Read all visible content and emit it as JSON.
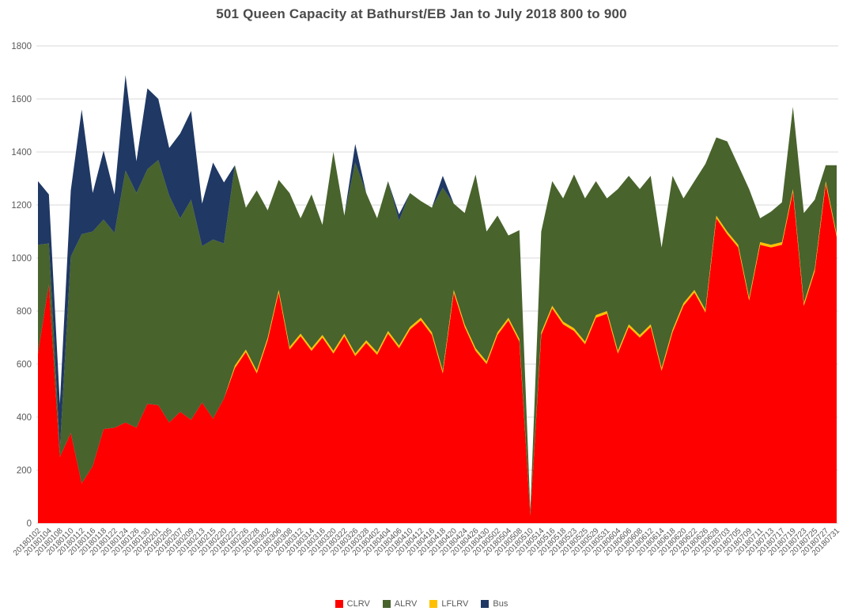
{
  "title": "501 Queen Capacity at Bathurst/EB Jan to July 2018 800 to 900",
  "colors": {
    "background": "#FFFFFF",
    "grid": "#D9D9D9",
    "axis_text": "#595959",
    "title_text": "#4a4a4a"
  },
  "legend": {
    "items": [
      "CLRV",
      "ALRV",
      "LFLRV",
      "Bus"
    ]
  },
  "chart_data": {
    "type": "area",
    "stacked": true,
    "title": "501 Queen Capacity at Bathurst/EB Jan to July 2018 800 to 900",
    "xlabel": "",
    "ylabel": "",
    "ylim": [
      0,
      1800
    ],
    "yticks": [
      0,
      200,
      400,
      600,
      800,
      1000,
      1200,
      1400,
      1600,
      1800
    ],
    "grid": true,
    "legend_position": "bottom",
    "x_labels_rotation": 45,
    "categories": [
      "20180102",
      "20180104",
      "20180108",
      "20180110",
      "20180112",
      "20180116",
      "20180118",
      "20180122",
      "20180124",
      "20180126",
      "20180130",
      "20180201",
      "20180205",
      "20180207",
      "20180209",
      "20180213",
      "20180215",
      "20180220",
      "20180222",
      "20180226",
      "20180228",
      "20180302",
      "20180306",
      "20180308",
      "20180312",
      "20180314",
      "20180316",
      "20180320",
      "20180322",
      "20180326",
      "20180328",
      "20180402",
      "20180404",
      "20180406",
      "20180410",
      "20180412",
      "20180416",
      "20180418",
      "20180420",
      "20180424",
      "20180426",
      "20180430",
      "20180502",
      "20180504",
      "20180508",
      "20180510",
      "20180514",
      "20180516",
      "20180518",
      "20180523",
      "20180525",
      "20180529",
      "20180531",
      "20180604",
      "20180606",
      "20180608",
      "20180612",
      "20180614",
      "20180618",
      "20180620",
      "20180622",
      "20180626",
      "20180628",
      "20180703",
      "20180705",
      "20180709",
      "20180711",
      "20180713",
      "20180717",
      "20180719",
      "20180723",
      "20180725",
      "20180727",
      "20180731"
    ],
    "series": [
      {
        "name": "CLRV",
        "color": "#FF0000",
        "values": [
          640,
          900,
          250,
          340,
          150,
          215,
          355,
          360,
          380,
          360,
          450,
          445,
          380,
          420,
          390,
          455,
          395,
          470,
          585,
          645,
          565,
          690,
          870,
          655,
          705,
          650,
          700,
          640,
          705,
          630,
          680,
          635,
          715,
          660,
          730,
          765,
          710,
          565,
          870,
          740,
          650,
          600,
          710,
          765,
          685,
          30,
          710,
          810,
          750,
          725,
          675,
          775,
          790,
          640,
          740,
          700,
          740,
          575,
          720,
          820,
          870,
          795,
          1150,
          1090,
          1040,
          840,
          1050,
          1040,
          1050,
          1250,
          820,
          950,
          1280,
          1080
        ]
      },
      {
        "name": "ALRV",
        "color": "#48632C",
        "values": [
          410,
          155,
          30,
          665,
          940,
          885,
          790,
          735,
          950,
          885,
          885,
          925,
          855,
          730,
          830,
          590,
          675,
          585,
          755,
          535,
          680,
          480,
          415,
          580,
          435,
          580,
          415,
          750,
          445,
          720,
          555,
          505,
          565,
          470,
          505,
          440,
          470,
          690,
          325,
          420,
          655,
          490,
          440,
          310,
          410,
          20,
          380,
          470,
          465,
          580,
          540,
          505,
          425,
          610,
          560,
          550,
          560,
          455,
          580,
          395,
          410,
          550,
          295,
          340,
          300,
          410,
          90,
          125,
          150,
          310,
          340,
          260,
          60,
          260
        ]
      },
      {
        "name": "LFLRV",
        "color": "#FFC000",
        "values": [
          0,
          0,
          0,
          0,
          0,
          0,
          0,
          0,
          0,
          0,
          0,
          0,
          0,
          0,
          0,
          0,
          0,
          0,
          10,
          10,
          10,
          10,
          10,
          10,
          10,
          10,
          10,
          10,
          10,
          10,
          10,
          10,
          10,
          10,
          10,
          10,
          10,
          10,
          10,
          10,
          10,
          10,
          10,
          10,
          10,
          0,
          10,
          10,
          10,
          10,
          10,
          10,
          10,
          10,
          10,
          10,
          10,
          10,
          10,
          10,
          10,
          10,
          10,
          10,
          10,
          10,
          10,
          10,
          10,
          10,
          10,
          10,
          10,
          10
        ]
      },
      {
        "name": "Bus",
        "color": "#1F3864",
        "values": [
          240,
          185,
          170,
          250,
          470,
          145,
          260,
          145,
          360,
          120,
          305,
          230,
          180,
          320,
          335,
          160,
          290,
          230,
          0,
          0,
          0,
          0,
          0,
          0,
          0,
          0,
          0,
          0,
          0,
          70,
          0,
          0,
          0,
          25,
          0,
          0,
          0,
          45,
          0,
          0,
          0,
          0,
          0,
          0,
          0,
          0,
          0,
          0,
          0,
          0,
          0,
          0,
          0,
          0,
          0,
          0,
          0,
          0,
          0,
          0,
          0,
          0,
          0,
          0,
          0,
          0,
          0,
          0,
          0,
          0,
          0,
          0,
          0,
          0
        ]
      }
    ],
    "stack_draw_order": [
      "CLRV",
      "LFLRV",
      "ALRV",
      "Bus"
    ]
  }
}
